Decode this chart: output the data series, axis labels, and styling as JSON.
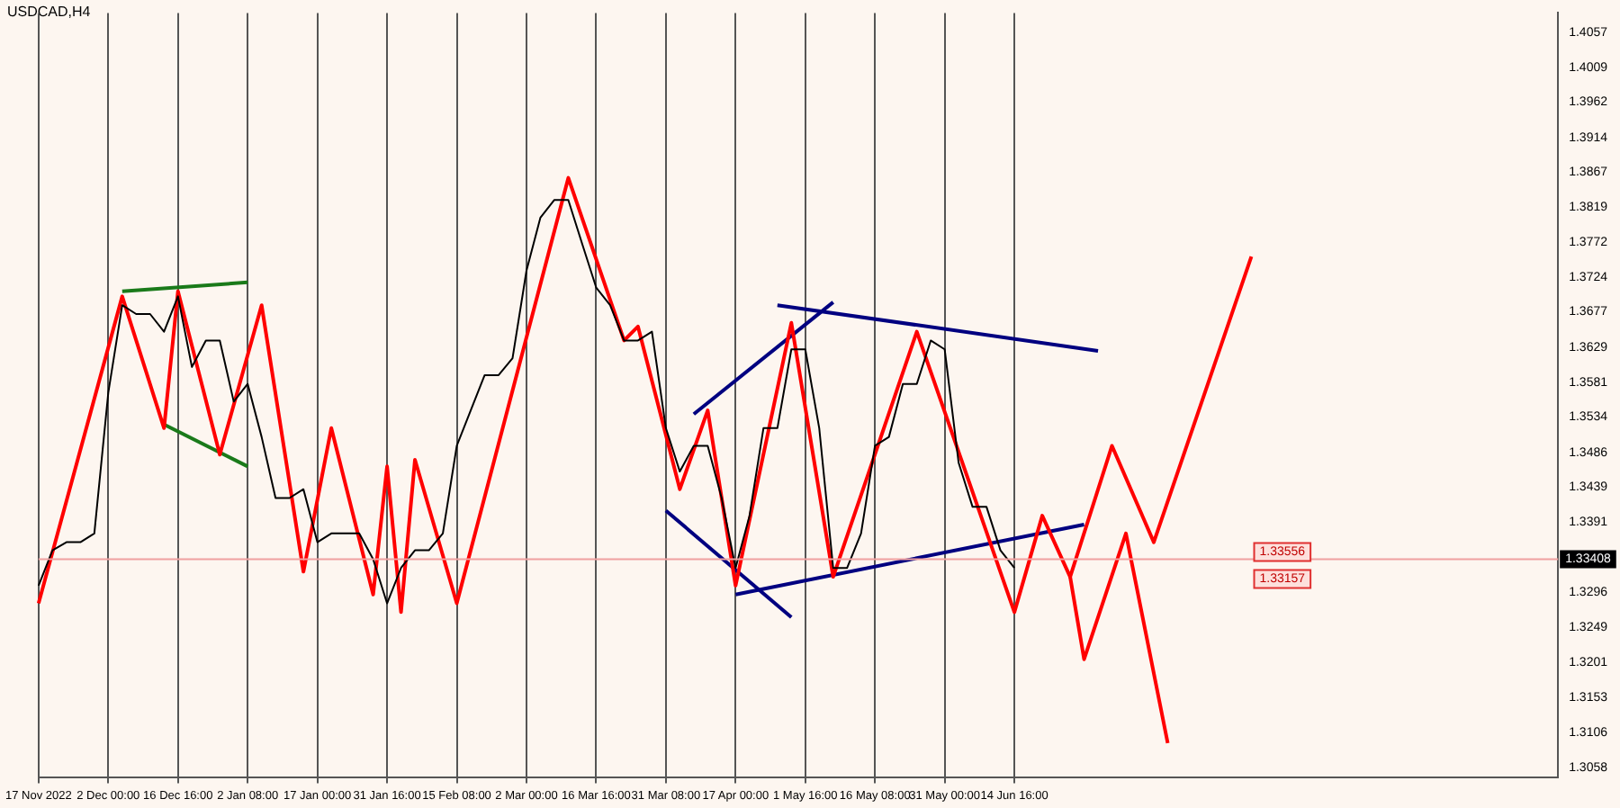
{
  "chart_data": {
    "type": "line",
    "title": "USDCAD,H4",
    "marker": "none",
    "legend": false,
    "grid": "x",
    "categories": [
      "17 Nov 2022",
      null,
      null,
      null,
      null,
      "2 Dec 00:00",
      null,
      null,
      null,
      null,
      "16 Dec 16:00",
      null,
      null,
      null,
      null,
      "2 Jan 08:00",
      null,
      null,
      null,
      null,
      "17 Jan 00:00",
      null,
      null,
      null,
      null,
      "31 Jan 16:00",
      null,
      null,
      null,
      null,
      "15 Feb 08:00",
      null,
      null,
      null,
      null,
      "2 Mar 00:00",
      null,
      null,
      null,
      null,
      "16 Mar 16:00",
      null,
      null,
      null,
      null,
      "31 Mar 08:00",
      null,
      null,
      null,
      null,
      "17 Apr 00:00",
      null,
      null,
      null,
      null,
      "1 May 16:00",
      null,
      null,
      null,
      null,
      "16 May 08:00",
      null,
      null,
      null,
      null,
      "31 May 00:00",
      null,
      null,
      null,
      null,
      "14 Jun 16:00",
      null,
      null,
      null,
      null,
      null,
      null,
      null,
      null,
      null,
      null,
      null,
      null,
      null,
      null,
      null,
      null,
      null,
      null,
      null,
      null,
      null,
      null,
      null,
      null,
      null,
      null,
      null,
      null,
      null,
      null,
      null,
      null,
      null,
      null,
      null,
      null,
      null,
      null,
      null
    ],
    "ylim": [
      1.3044,
      1.4083
    ],
    "yticks": [
      1.3058,
      1.3106,
      1.3153,
      1.3201,
      1.3249,
      1.3296,
      1.3391,
      1.3439,
      1.3486,
      1.3534,
      1.3581,
      1.3629,
      1.3677,
      1.3724,
      1.3772,
      1.3819,
      1.3867,
      1.3914,
      1.3962,
      1.4009,
      1.4057
    ],
    "ref_lines": [
      {
        "axis": "y",
        "value": 1.33408,
        "label": "1.33408",
        "color": "#f0a0a0"
      }
    ],
    "annotations": [
      "1.33556",
      "1.33157"
    ],
    "series": [
      {
        "color": "#000000",
        "values": [
          1.3305,
          1.3353,
          1.3364,
          1.3364,
          1.3376,
          1.3567,
          1.3686,
          1.3674,
          1.3674,
          1.365,
          1.3698,
          1.3602,
          1.3638,
          1.3638,
          1.3555,
          1.3579,
          1.3507,
          1.3424,
          1.3424,
          1.3436,
          1.3364,
          1.3376,
          1.3376,
          1.3376,
          1.3341,
          1.3281,
          1.3329,
          1.3353,
          1.3353,
          1.3376,
          1.3495,
          1.3543,
          1.3591,
          1.3591,
          1.3614,
          1.3733,
          1.3805,
          1.3829,
          1.3829,
          1.3769,
          1.371,
          1.3686,
          1.3638,
          1.3638,
          1.365,
          1.3519,
          1.346,
          1.3495,
          1.3495,
          1.3424,
          1.3329,
          1.34,
          1.3519,
          1.3519,
          1.3626,
          1.3626,
          1.3519,
          1.3329,
          1.3329,
          1.3376,
          1.3495,
          1.3507,
          1.3579,
          1.3579,
          1.3638,
          1.3626,
          1.3472,
          1.3412,
          1.3412,
          1.3353,
          1.3329,
          null,
          null,
          null,
          null,
          null,
          null,
          null,
          null,
          null,
          null,
          null,
          null,
          null,
          null,
          null,
          null,
          null,
          null,
          null,
          null,
          null,
          null,
          null,
          null,
          null,
          null,
          null,
          null,
          null,
          null,
          null,
          null,
          null,
          null,
          null,
          null,
          null,
          null,
          null
        ]
      },
      {
        "color": "#ff0000",
        "values": [
          1.3281,
          null,
          null,
          null,
          null,
          null,
          1.3698,
          null,
          null,
          1.3519,
          1.3705,
          null,
          null,
          1.3483,
          null,
          null,
          1.3686,
          null,
          null,
          1.3324,
          null,
          1.3519,
          null,
          null,
          1.3293,
          1.3467,
          1.3269,
          1.3476,
          null,
          null,
          1.3281,
          null,
          null,
          null,
          null,
          null,
          null,
          null,
          1.3859,
          null,
          null,
          null,
          1.3638,
          1.3657,
          null,
          null,
          1.3436,
          null,
          1.3543,
          null,
          1.3305,
          null,
          null,
          null,
          1.3662,
          null,
          null,
          1.3317,
          null,
          null,
          null,
          null,
          null,
          1.365,
          null,
          null,
          null,
          null,
          null,
          null,
          1.3269,
          null,
          1.34,
          null,
          1.3317,
          null,
          null,
          1.3495,
          null,
          null,
          1.3364,
          null,
          null,
          null,
          null,
          null,
          null,
          1.3752,
          null,
          null,
          null,
          null,
          null,
          null,
          null,
          null,
          null,
          null,
          null,
          null,
          null,
          null,
          null,
          null,
          null,
          null,
          null,
          null,
          null,
          null
        ]
      },
      {
        "color": "#ff0000",
        "values": [
          null,
          null,
          null,
          null,
          null,
          null,
          null,
          null,
          null,
          null,
          null,
          null,
          null,
          null,
          null,
          null,
          null,
          null,
          null,
          null,
          null,
          null,
          null,
          null,
          null,
          null,
          null,
          null,
          null,
          null,
          null,
          null,
          null,
          null,
          null,
          null,
          null,
          null,
          null,
          null,
          null,
          null,
          null,
          null,
          null,
          null,
          null,
          null,
          null,
          null,
          null,
          null,
          null,
          null,
          null,
          null,
          null,
          null,
          null,
          null,
          null,
          null,
          null,
          null,
          null,
          null,
          null,
          null,
          null,
          null,
          null,
          null,
          null,
          null,
          1.3317,
          1.3205,
          null,
          null,
          1.3376,
          null,
          null,
          1.3091,
          null,
          null,
          null,
          null,
          null,
          null,
          null,
          null,
          null,
          null,
          null,
          null,
          null,
          null,
          null,
          null,
          null,
          null,
          null,
          null,
          null,
          null,
          null,
          null,
          null,
          null,
          null,
          null
        ]
      },
      {
        "color": "#000080",
        "values": [
          null,
          null,
          null,
          null,
          null,
          null,
          null,
          null,
          null,
          null,
          null,
          null,
          null,
          null,
          null,
          null,
          null,
          null,
          null,
          null,
          null,
          null,
          null,
          null,
          null,
          null,
          null,
          null,
          null,
          null,
          null,
          null,
          null,
          null,
          null,
          null,
          null,
          null,
          null,
          null,
          null,
          null,
          null,
          null,
          null,
          null,
          null,
          1.3538,
          null,
          null,
          null,
          null,
          null,
          null,
          null,
          null,
          null,
          1.369,
          null,
          null,
          null,
          null,
          null,
          null,
          null,
          null,
          null,
          null,
          null,
          null,
          null,
          null,
          null,
          null,
          null,
          null,
          null,
          null,
          null,
          null,
          null,
          null,
          null,
          null,
          null,
          null,
          null,
          null,
          null,
          null,
          null,
          null,
          null,
          null,
          null,
          null,
          null,
          null,
          null,
          null,
          null,
          null,
          null,
          null,
          null,
          null,
          null,
          null,
          null,
          null
        ]
      },
      {
        "color": "#000080",
        "values": [
          null,
          null,
          null,
          null,
          null,
          null,
          null,
          null,
          null,
          null,
          null,
          null,
          null,
          null,
          null,
          null,
          null,
          null,
          null,
          null,
          null,
          null,
          null,
          null,
          null,
          null,
          null,
          null,
          null,
          null,
          null,
          null,
          null,
          null,
          null,
          null,
          null,
          null,
          null,
          null,
          null,
          null,
          null,
          null,
          null,
          null,
          null,
          null,
          null,
          null,
          null,
          null,
          null,
          1.3686,
          null,
          null,
          null,
          null,
          null,
          null,
          null,
          null,
          null,
          null,
          null,
          null,
          null,
          null,
          null,
          null,
          null,
          null,
          null,
          null,
          null,
          null,
          1.3624,
          null,
          null,
          null,
          null,
          null,
          null,
          null,
          null,
          null,
          null,
          null,
          null,
          null,
          null,
          null,
          null,
          null,
          null,
          null,
          null,
          null,
          null,
          null,
          null,
          null,
          null,
          null,
          null,
          null,
          null,
          null,
          null,
          null
        ]
      },
      {
        "color": "#000080",
        "values": [
          null,
          null,
          null,
          null,
          null,
          null,
          null,
          null,
          null,
          null,
          null,
          null,
          null,
          null,
          null,
          null,
          null,
          null,
          null,
          null,
          null,
          null,
          null,
          null,
          null,
          null,
          null,
          null,
          null,
          null,
          null,
          null,
          null,
          null,
          null,
          null,
          null,
          null,
          null,
          null,
          null,
          null,
          null,
          null,
          null,
          1.3407,
          null,
          null,
          null,
          null,
          null,
          null,
          null,
          null,
          1.3262,
          null,
          null,
          null,
          null,
          null,
          null,
          null,
          null,
          null,
          null,
          null,
          null,
          null,
          null,
          null,
          null,
          null,
          null,
          null,
          null,
          null,
          null,
          null,
          null,
          null,
          null,
          null,
          null,
          null,
          null,
          null,
          null,
          null,
          null,
          null,
          null,
          null,
          null,
          null,
          null,
          null,
          null,
          null,
          null,
          null,
          null,
          null,
          null,
          null,
          null,
          null,
          null,
          null,
          null,
          null
        ]
      },
      {
        "color": "#000080",
        "values": [
          null,
          null,
          null,
          null,
          null,
          null,
          null,
          null,
          null,
          null,
          null,
          null,
          null,
          null,
          null,
          null,
          null,
          null,
          null,
          null,
          null,
          null,
          null,
          null,
          null,
          null,
          null,
          null,
          null,
          null,
          null,
          null,
          null,
          null,
          null,
          null,
          null,
          null,
          null,
          null,
          null,
          null,
          null,
          null,
          null,
          null,
          null,
          null,
          null,
          null,
          1.3293,
          null,
          null,
          null,
          null,
          null,
          null,
          null,
          null,
          null,
          null,
          null,
          null,
          null,
          null,
          null,
          null,
          null,
          null,
          null,
          null,
          null,
          null,
          null,
          null,
          1.3388,
          null,
          null,
          null,
          null,
          null,
          null,
          null,
          null,
          null,
          null,
          null,
          null,
          null,
          null,
          null,
          null,
          null,
          null,
          null,
          null,
          null,
          null,
          null,
          null,
          null,
          null,
          null,
          null,
          null,
          null,
          null,
          null,
          null,
          null
        ]
      },
      {
        "color": "#1a7a1a",
        "values": [
          null,
          null,
          null,
          null,
          null,
          null,
          1.3705,
          null,
          null,
          null,
          null,
          null,
          null,
          null,
          null,
          1.3717,
          null,
          null,
          null,
          null,
          null,
          null,
          null,
          null,
          null,
          null,
          null,
          null,
          null,
          null,
          null,
          null,
          null,
          null,
          null,
          null,
          null,
          null,
          null,
          null,
          null,
          null,
          null,
          null,
          null,
          null,
          null,
          null,
          null,
          null,
          null,
          null,
          null,
          null,
          null,
          null,
          null,
          null,
          null,
          null,
          null,
          null,
          null,
          null,
          null,
          null,
          null,
          null,
          null,
          null,
          null,
          null,
          null,
          null,
          null,
          null,
          null,
          null,
          null,
          null,
          null,
          null,
          null,
          null,
          null,
          null,
          null,
          null,
          null,
          null,
          null,
          null,
          null,
          null,
          null,
          null,
          null,
          null,
          null,
          null,
          null,
          null,
          null,
          null,
          null,
          null,
          null,
          null,
          null,
          null
        ]
      },
      {
        "color": "#1a7a1a",
        "values": [
          null,
          null,
          null,
          null,
          null,
          null,
          null,
          null,
          null,
          1.3524,
          null,
          null,
          null,
          null,
          null,
          1.3467,
          null,
          null,
          null,
          null,
          null,
          null,
          null,
          null,
          null,
          null,
          null,
          null,
          null,
          null,
          null,
          null,
          null,
          null,
          null,
          null,
          null,
          null,
          null,
          null,
          null,
          null,
          null,
          null,
          null,
          null,
          null,
          null,
          null,
          null,
          null,
          null,
          null,
          null,
          null,
          null,
          null,
          null,
          null,
          null,
          null,
          null,
          null,
          null,
          null,
          null,
          null,
          null,
          null,
          null,
          null,
          null,
          null,
          null,
          null,
          null,
          null,
          null,
          null,
          null,
          null,
          null,
          null,
          null,
          null,
          null,
          null,
          null,
          null,
          null,
          null,
          null,
          null,
          null,
          null,
          null,
          null,
          null,
          null,
          null,
          null,
          null,
          null,
          null,
          null,
          null,
          null,
          null,
          null,
          null
        ]
      }
    ]
  }
}
